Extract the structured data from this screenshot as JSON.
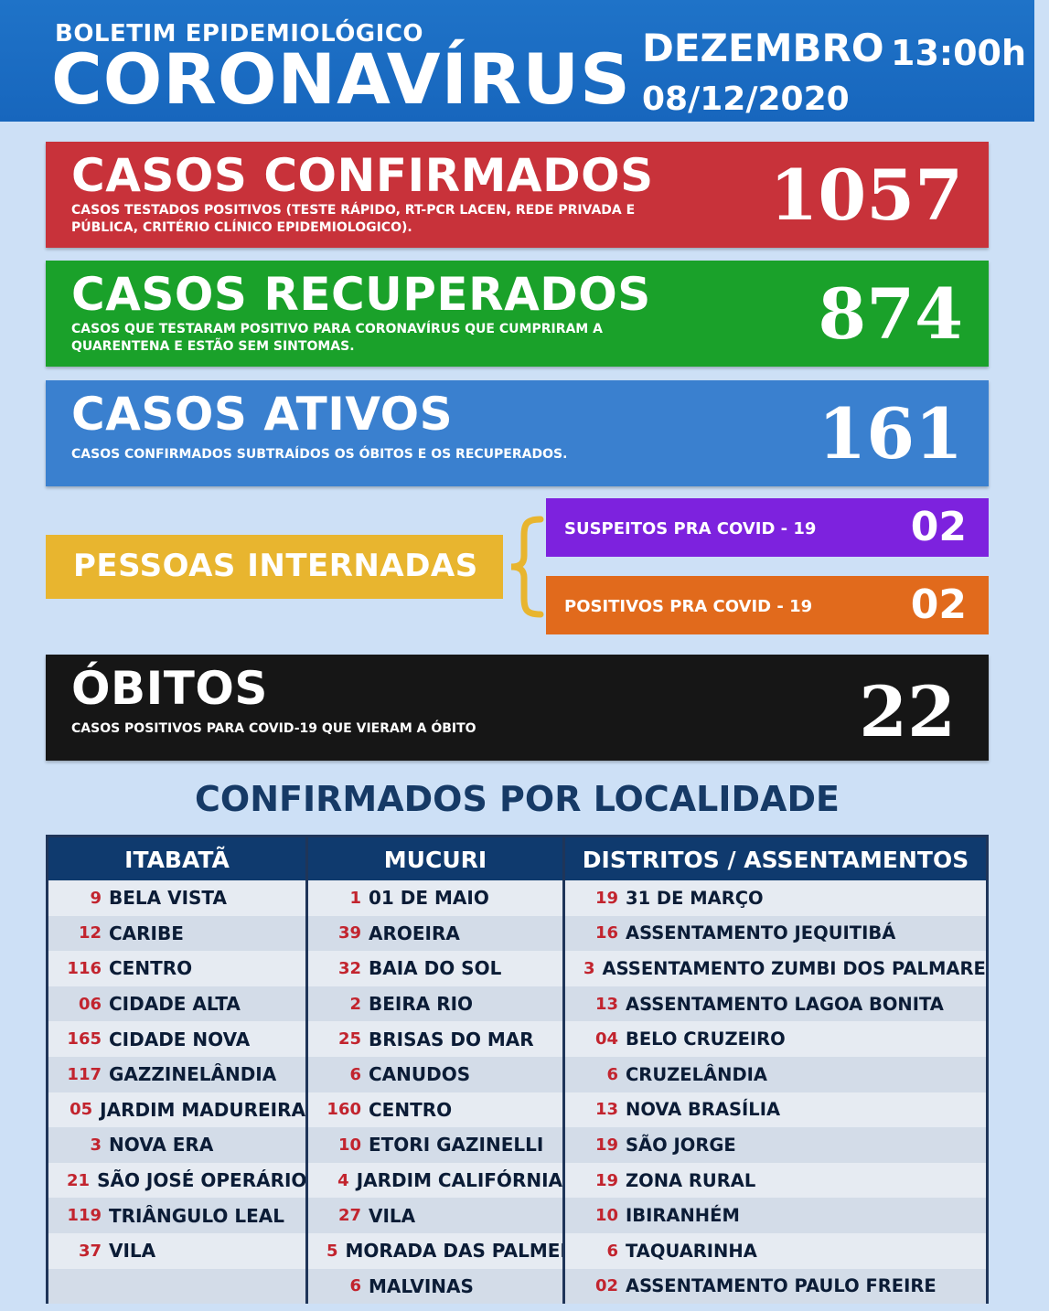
{
  "header": {
    "kicker": "BOLETIM EPIDEMIOLÓGICO",
    "title": "CORONAVÍRUS",
    "month": "DEZEMBRO",
    "time": "13:00h",
    "date": "08/12/2020"
  },
  "confirmed": {
    "label": "CASOS CONFIRMADOS",
    "desc": "CASOS TESTADOS POSITIVOS (TESTE RÁPIDO, RT-PCR LACEN, REDE PRIVADA E PÚBLICA, CRITÉRIO CLÍNICO EPIDEMIOLOGICO).",
    "value": "1057",
    "color": "#c8323a"
  },
  "recovered": {
    "label": "CASOS RECUPERADOS",
    "desc": "CASOS QUE TESTARAM POSITIVO PARA CORONAVÍRUS QUE CUMPRIRAM A QUARENTENA E ESTÃO SEM SINTOMAS.",
    "value": "874",
    "color": "#1aa12a"
  },
  "active": {
    "label": "CASOS ATIVOS",
    "desc": "CASOS CONFIRMADOS SUBTRAÍDOS OS ÓBITOS E OS RECUPERADOS.",
    "value": "161",
    "color": "#3a80cf"
  },
  "hospitalized": {
    "label": "PESSOAS INTERNADAS",
    "suspects_label": "SUSPEITOS PRA COVID - 19",
    "suspects_value": "02",
    "positives_label": "POSITIVOS PRA COVID - 19",
    "positives_value": "02"
  },
  "deaths": {
    "label": "ÓBITOS",
    "desc": "CASOS POSITIVOS PARA COVID-19 QUE VIERAM A ÓBITO",
    "value": "22"
  },
  "locality": {
    "title": "CONFIRMADOS POR LOCALIDADE",
    "columns": [
      {
        "header": "ITABATÃ",
        "rows": [
          {
            "n": "9",
            "name": "BELA VISTA"
          },
          {
            "n": "12",
            "name": "CARIBE"
          },
          {
            "n": "116",
            "name": "CENTRO"
          },
          {
            "n": "06",
            "name": "CIDADE ALTA"
          },
          {
            "n": "165",
            "name": "CIDADE NOVA"
          },
          {
            "n": "117",
            "name": "GAZZINELÂNDIA"
          },
          {
            "n": "05",
            "name": "JARDIM MADUREIRA"
          },
          {
            "n": "3",
            "name": "NOVA ERA"
          },
          {
            "n": "21",
            "name": "SÃO JOSÉ OPERÁRIO"
          },
          {
            "n": "119",
            "name": "TRIÂNGULO LEAL"
          },
          {
            "n": "37",
            "name": "VILA"
          },
          {
            "n": "",
            "name": ""
          }
        ]
      },
      {
        "header": "MUCURI",
        "rows": [
          {
            "n": "1",
            "name": "01 DE MAIO"
          },
          {
            "n": "39",
            "name": "AROEIRA"
          },
          {
            "n": "32",
            "name": "BAIA DO SOL"
          },
          {
            "n": "2",
            "name": "BEIRA RIO"
          },
          {
            "n": "25",
            "name": "BRISAS DO MAR"
          },
          {
            "n": "6",
            "name": "CANUDOS"
          },
          {
            "n": "160",
            "name": "CENTRO"
          },
          {
            "n": "10",
            "name": "ETORI GAZINELLI"
          },
          {
            "n": "4",
            "name": "JARDIM CALIFÓRNIA"
          },
          {
            "n": "27",
            "name": "VILA"
          },
          {
            "n": "5",
            "name": "MORADA DAS PALMEIRAS"
          },
          {
            "n": "6",
            "name": "MALVINAS"
          }
        ]
      },
      {
        "header": "DISTRITOS / ASSENTAMENTOS",
        "rows": [
          {
            "n": "19",
            "name": "31 DE MARÇO"
          },
          {
            "n": "16",
            "name": "ASSENTAMENTO JEQUITIBÁ"
          },
          {
            "n": "3",
            "name": "ASSENTAMENTO ZUMBI DOS PALMARES"
          },
          {
            "n": "13",
            "name": "ASSENTAMENTO LAGOA BONITA"
          },
          {
            "n": "04",
            "name": "BELO CRUZEIRO"
          },
          {
            "n": "6",
            "name": "CRUZELÂNDIA"
          },
          {
            "n": "13",
            "name": "NOVA BRASÍLIA"
          },
          {
            "n": "19",
            "name": "SÃO JORGE"
          },
          {
            "n": "19",
            "name": "ZONA RURAL"
          },
          {
            "n": "10",
            "name": "IBIRANHÉM"
          },
          {
            "n": "6",
            "name": "TAQUARINHA"
          },
          {
            "n": "02",
            "name": "ASSENTAMENTO PAULO FREIRE"
          }
        ]
      }
    ]
  }
}
